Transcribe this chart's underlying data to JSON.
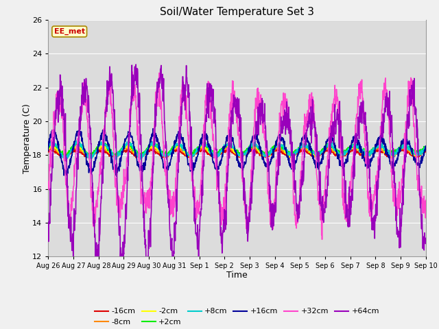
{
  "title": "Soil/Water Temperature Set 3",
  "xlabel": "Time",
  "ylabel": "Temperature (C)",
  "ylim": [
    12,
    26
  ],
  "yticks": [
    12,
    14,
    16,
    18,
    20,
    22,
    24,
    26
  ],
  "plot_bg_color": "#dcdcdc",
  "fig_bg_color": "#f0f0f0",
  "series": {
    "-16cm": {
      "color": "#dd0000",
      "linewidth": 1.2
    },
    "-8cm": {
      "color": "#ff8800",
      "linewidth": 1.2
    },
    "-2cm": {
      "color": "#ffff00",
      "linewidth": 1.2
    },
    "+2cm": {
      "color": "#00ee00",
      "linewidth": 1.2
    },
    "+8cm": {
      "color": "#00cccc",
      "linewidth": 1.2
    },
    "+16cm": {
      "color": "#000099",
      "linewidth": 1.2
    },
    "+32cm": {
      "color": "#ff44cc",
      "linewidth": 1.2
    },
    "+64cm": {
      "color": "#9900bb",
      "linewidth": 1.2
    }
  },
  "watermark": "EE_met",
  "watermark_bg": "#ffffcc",
  "watermark_border": "#aa8800",
  "watermark_text_color": "#cc0000",
  "xtick_labels": [
    "Aug 26",
    "Aug 27",
    "Aug 28",
    "Aug 29",
    "Aug 30",
    "Aug 31",
    "Sep 1",
    "Sep 2",
    "Sep 3",
    "Sep 4",
    "Sep 5",
    "Sep 6",
    "Sep 7",
    "Sep 8",
    "Sep 9",
    "Sep 10"
  ],
  "duration_days": 15,
  "base_temp": 18.1
}
